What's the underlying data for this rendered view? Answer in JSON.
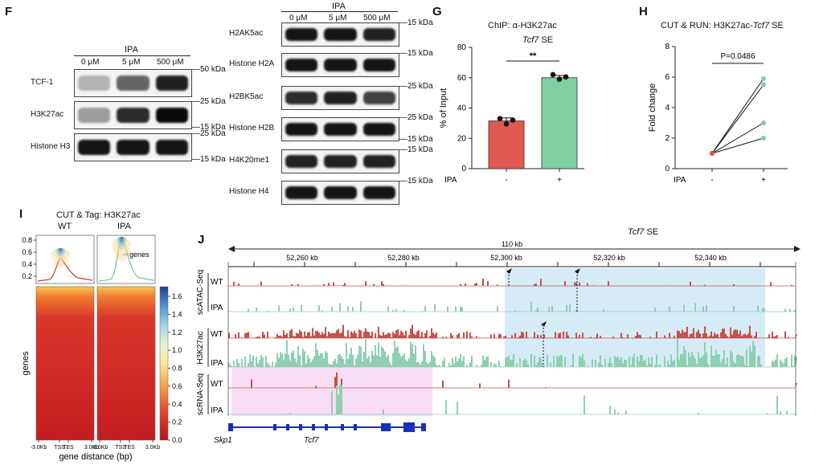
{
  "panels": {
    "F": {
      "letter": "F",
      "left_blot": {
        "treatment": "IPA",
        "conditions": [
          "0 μM",
          "5 μM",
          "500 μM"
        ],
        "rows": [
          {
            "label": "TCF-1",
            "marker_top": "50 kDa",
            "intensities": [
              0.25,
              0.6,
              0.9
            ]
          },
          {
            "label": "H3K27ac",
            "marker_top": "25 kDa",
            "marker_bottom": "15 kDa",
            "intensities": [
              0.35,
              0.85,
              1.0
            ]
          },
          {
            "label": "Histone H3",
            "marker_top": "25 kDa",
            "marker_bottom": "15 kDa",
            "intensities": [
              0.95,
              0.95,
              0.95
            ]
          }
        ]
      },
      "right_blot": {
        "treatment": "IPA",
        "conditions": [
          "0 μM",
          "5 μM",
          "500 μM"
        ],
        "rows": [
          {
            "label": "H2AK5ac",
            "marker_top": "15 kDa",
            "intensities": [
              0.95,
              0.95,
              0.9
            ]
          },
          {
            "label": "Histone H2A",
            "marker_top": "15 kDa",
            "intensities": [
              0.95,
              0.95,
              0.95
            ]
          },
          {
            "label": "H2BK5ac",
            "marker_top": "25 kDa",
            "intensities": [
              0.85,
              0.9,
              0.75
            ]
          },
          {
            "label": "Histone H2B",
            "marker_top": "25 kDa",
            "marker_bottom": "15 kDa",
            "intensities": [
              0.95,
              0.95,
              0.95
            ]
          },
          {
            "label": "H4K20me1",
            "marker_top": "15 kDa",
            "intensities": [
              0.9,
              0.9,
              0.9
            ]
          },
          {
            "label": "Histone H4",
            "marker_top": "15 kDa",
            "intensities": [
              0.95,
              0.95,
              0.95
            ]
          }
        ]
      }
    },
    "G": {
      "letter": "G",
      "title": "ChIP: α-H3K27ac",
      "subtitle_gene": "Tcf7",
      "subtitle_rest": " SE",
      "significance": "**",
      "ylabel": "% of Input",
      "xgroup_label": "IPA",
      "yticks": [
        "0",
        "20",
        "40",
        "60",
        "80"
      ],
      "bar_color_ctrl": "#e05a4f",
      "bar_color_ipa": "#7fd0a0"
    },
    "H": {
      "letter": "H",
      "title_prefix": "CUT & RUN: H3K27ac-",
      "title_gene": "Tcf7",
      "title_suffix": " SE",
      "pvalue": "P=0.0486",
      "ylabel": "Fold change",
      "xgroup_label": "IPA",
      "yticks": [
        "0",
        "2",
        "4",
        "6",
        "8"
      ]
    },
    "I": {
      "letter": "I",
      "title": "CUT & Tag: H3K27ac",
      "groups": [
        "WT",
        "IPA"
      ],
      "legend_label": "genes",
      "profile_yticks": [
        "0.8",
        "0.6",
        "0.4",
        "0.2"
      ],
      "heatmap_ylabel": "genes",
      "xticks": [
        "-3.0Kb",
        "TSS",
        "TES",
        "3.0Kb"
      ],
      "xlabel": "gene distance (bp)",
      "colorbar_ticks": [
        "1.6",
        "1.4",
        "1.2",
        "1.0",
        "0.8",
        "0.6",
        "0.4",
        "0.2",
        "0.0"
      ]
    },
    "J": {
      "letter": "J",
      "title_gene": "Tcf7",
      "title_rest": " SE",
      "span_label": "110 kb",
      "coords": [
        "52,260 kb",
        "52,280 kb",
        "52,300 kb",
        "52,320 kb",
        "52,340 kb"
      ],
      "track_groups": [
        {
          "name": "scATAC-Seq",
          "tracks": [
            "WT",
            "IPA"
          ]
        },
        {
          "name": "H3K27ac",
          "tracks": [
            "WT",
            "IPA"
          ]
        },
        {
          "name": "scRNA-Seq",
          "tracks": [
            "WT",
            "IPA"
          ]
        }
      ],
      "genes": [
        "Skp1",
        "Tcf7"
      ],
      "color_wt": "#c8504a",
      "color_ipa": "#8fcfb2",
      "highlight_blue": "#d5ecf7",
      "highlight_pink": "#f8def5"
    }
  },
  "chart_data": [
    {
      "type": "bar",
      "title": "ChIP: α-H3K27ac",
      "subtitle": "Tcf7 SE",
      "categories": [
        "-",
        "+"
      ],
      "values": [
        31.5,
        60
      ],
      "points": [
        [
          33,
          29.5,
          32
        ],
        [
          62,
          59,
          60.5
        ]
      ],
      "errors": [
        2,
        1.5
      ],
      "xlabel": "IPA",
      "ylabel": "% of Input",
      "ylim": [
        0,
        80
      ],
      "significance": "**"
    },
    {
      "type": "line",
      "title": "CUT & RUN: H3K27ac-Tcf7 SE",
      "categories": [
        "-",
        "+"
      ],
      "series": [
        {
          "values": [
            1,
            5.9
          ]
        },
        {
          "values": [
            1,
            5.5
          ]
        },
        {
          "values": [
            1,
            3
          ]
        },
        {
          "values": [
            1,
            2
          ]
        }
      ],
      "xlabel": "IPA",
      "ylabel": "Fold change",
      "ylim": [
        0,
        8
      ],
      "annotation": "P=0.0486"
    }
  ]
}
